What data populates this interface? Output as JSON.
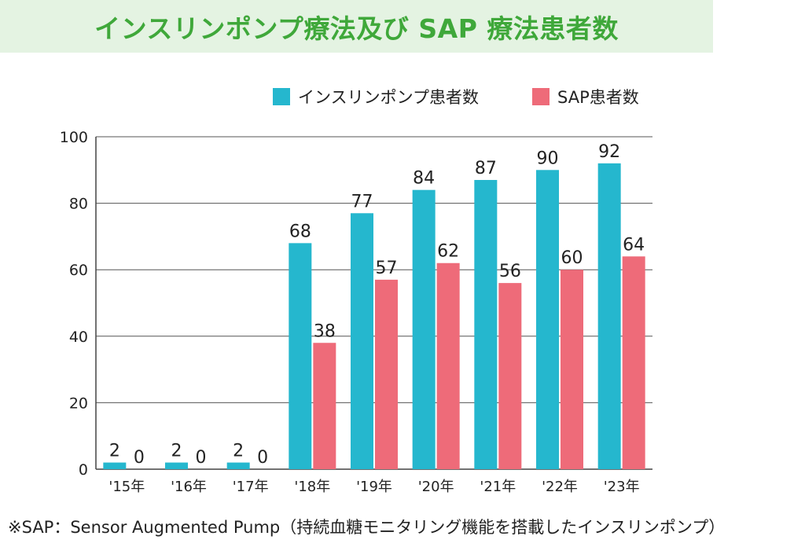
{
  "title": "インスリンポンプ療法及び SAP 療法患者数",
  "colors": {
    "insulin": "#25b7ce",
    "sap": "#ee6b79",
    "title_bg": "#e4f3e2",
    "title_text": "#3fa83a"
  },
  "chart_data": {
    "type": "bar",
    "categories": [
      "'15年",
      "'16年",
      "'17年",
      "'18年",
      "'19年",
      "'20年",
      "'21年",
      "'22年",
      "'23年"
    ],
    "series": [
      {
        "name": "インスリンポンプ患者数",
        "values": [
          2,
          2,
          2,
          68,
          77,
          84,
          87,
          90,
          92
        ]
      },
      {
        "name": "SAP患者数",
        "values": [
          0,
          0,
          0,
          38,
          57,
          62,
          56,
          60,
          64
        ]
      }
    ],
    "yticks": [
      0,
      20,
      40,
      60,
      80,
      100
    ],
    "ylim": [
      0,
      100
    ],
    "xlabel": "",
    "ylabel": "",
    "grid": true,
    "legend": "top-right"
  },
  "footnote": "※SAP：Sensor Augmented Pump（持続血糖モニタリング機能を搭載したインスリンポンプ）"
}
